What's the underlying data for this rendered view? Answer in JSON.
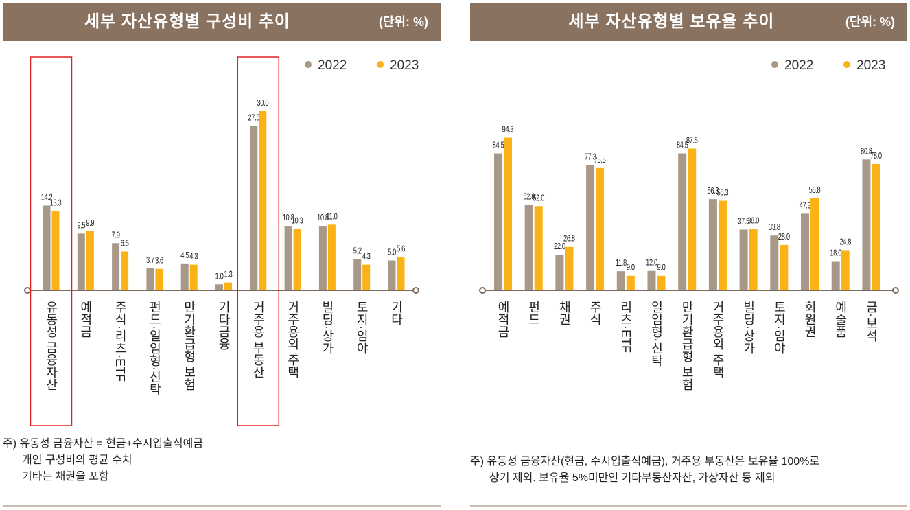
{
  "colors": {
    "c2022": "#a89888",
    "c2023": "#fbb216",
    "header": "#8a7260",
    "highlight": "#e02020",
    "axis": "#7a6a5c"
  },
  "left": {
    "title": "세부 자산유형별 구성비 추이",
    "unit": "(단위: %)",
    "notes": [
      "주) 유동성 금융자산 = 현금+수시입출식예금",
      "개인 구성비의 평균 수치",
      "기타는 채권을 포함"
    ]
  },
  "right": {
    "title": "세부 자산유형별 보유율 추이",
    "unit": "(단위: %)",
    "notes": [
      "주) 유동성 금융자산(현금, 수시입출식예금), 거주용 부동산은 보유율 100%로",
      "상기 제외. 보유율 5%미만인 기타부동산자산, 가상자산 등 제외"
    ]
  },
  "chart_data": [
    {
      "type": "bar",
      "title": "세부 자산유형별 구성비 추이",
      "unit": "(단위: %)",
      "categories": [
        "유동성 금융자산",
        "예적금",
        "주식·리츠·ETF",
        "펀드·일임형·신탁",
        "만기환급형 보험",
        "기타금융",
        "거주용 부동산",
        "거주용외 주택",
        "빌딩·상가",
        "토지·임야",
        "기타"
      ],
      "series": [
        {
          "name": "2022",
          "values": [
            14.2,
            9.5,
            7.9,
            3.7,
            4.5,
            1.0,
            27.5,
            10.8,
            10.8,
            5.2,
            5.0
          ]
        },
        {
          "name": "2023",
          "values": [
            13.3,
            9.9,
            6.5,
            3.6,
            4.3,
            1.3,
            30.0,
            10.3,
            11.0,
            4.3,
            5.6
          ]
        }
      ],
      "highlighted": [
        "유동성 금융자산",
        "거주용 부동산"
      ],
      "legend": "top-right"
    },
    {
      "type": "bar",
      "title": "세부 자산유형별 보유율 추이",
      "unit": "(단위: %)",
      "categories": [
        "예적금",
        "펀드",
        "채권",
        "주식",
        "리츠·ETF",
        "일임형·신탁",
        "만기환급형 보험",
        "거주용외 주택",
        "빌딩·상가",
        "토지·임야",
        "회원권",
        "예술품",
        "금·보석"
      ],
      "series": [
        {
          "name": "2022",
          "values": [
            84.5,
            52.8,
            22.0,
            77.3,
            11.8,
            12.0,
            84.5,
            56.3,
            37.5,
            33.8,
            47.3,
            18.0,
            80.8
          ]
        },
        {
          "name": "2023",
          "values": [
            94.3,
            52.0,
            26.8,
            75.5,
            9.0,
            9.0,
            87.5,
            55.3,
            38.0,
            28.0,
            56.8,
            24.8,
            78.0
          ]
        }
      ],
      "legend": "top-right"
    }
  ]
}
